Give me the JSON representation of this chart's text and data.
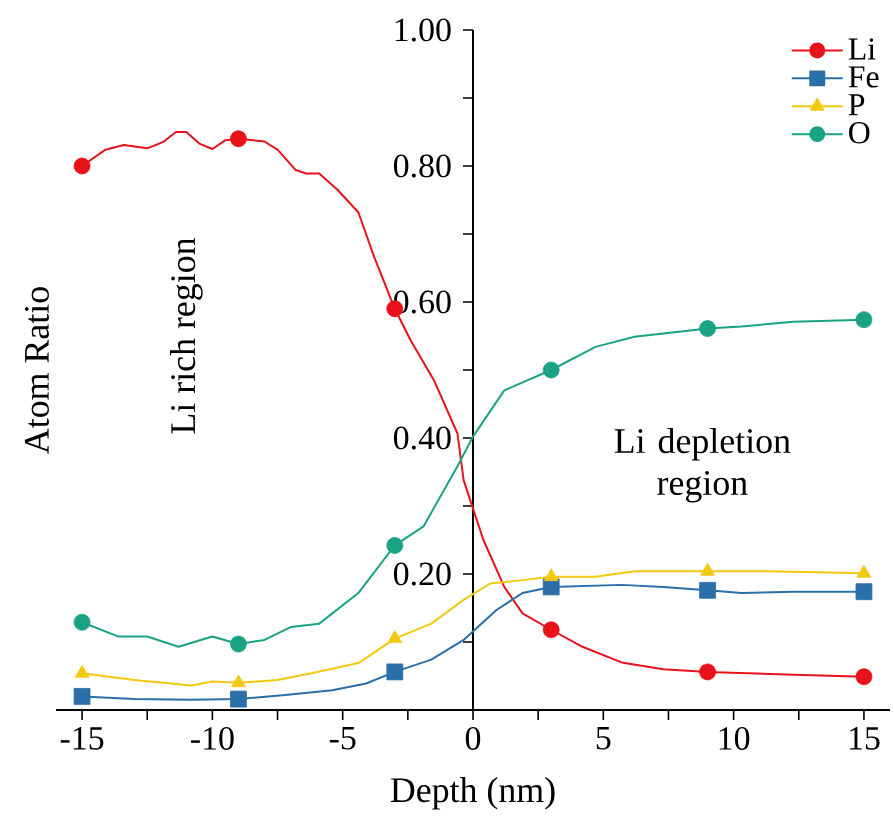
{
  "chart_data": {
    "type": "line",
    "xlabel": "Depth (nm)",
    "ylabel": "Atom Ratio",
    "annotations": [
      "Li rich region",
      "Li depletion region"
    ],
    "xlim": [
      -16,
      16
    ],
    "ylim": [
      0,
      1.0
    ],
    "xticks": [
      -15,
      {
        "value": -12.5,
        "label": null
      },
      -10,
      {
        "value": -7.5,
        "label": null
      },
      -5,
      {
        "value": -2.5,
        "label": null
      },
      0,
      {
        "value": 2.5,
        "label": null
      },
      5,
      {
        "value": 7.5,
        "label": null
      },
      10,
      {
        "value": 12.5,
        "label": null
      },
      15
    ],
    "yticks": [
      {
        "value": 0.1,
        "label": null
      },
      {
        "value": 0.2,
        "label": "0.20"
      },
      {
        "value": 0.3,
        "label": null
      },
      {
        "value": 0.4,
        "label": "0.40"
      },
      {
        "value": 0.5,
        "label": null
      },
      {
        "value": 0.6,
        "label": "0.60"
      },
      {
        "value": 0.7,
        "label": null
      },
      {
        "value": 0.8,
        "label": "0.80"
      },
      {
        "value": 0.9,
        "label": null
      },
      {
        "value": 1.0,
        "label": "1.00"
      }
    ],
    "legend": "top right",
    "series": [
      {
        "name": "Li",
        "color": "#e8121a",
        "x": [
          -15,
          -14.1,
          -13.4,
          -12.5,
          -11.9,
          -11.4,
          -11.0,
          -10.5,
          -10.0,
          -9.5,
          -9,
          -8.0,
          -7.5,
          -6.8,
          -6.4,
          -5.9,
          -5.2,
          -4.4,
          -3.8,
          -3,
          -2.4,
          -1.5,
          -0.6,
          -0.36,
          0.4,
          1.2,
          1.9,
          3,
          4.2,
          5.7,
          7.3,
          9,
          12.3,
          15
        ],
        "values": [
          0.8,
          0.824,
          0.831,
          0.826,
          0.835,
          0.85,
          0.85,
          0.833,
          0.825,
          0.838,
          0.84,
          0.836,
          0.824,
          0.794,
          0.789,
          0.789,
          0.765,
          0.732,
          0.667,
          0.59,
          0.544,
          0.485,
          0.407,
          0.338,
          0.25,
          0.181,
          0.142,
          0.118,
          0.093,
          0.07,
          0.06,
          0.056,
          0.052,
          0.049
        ]
      },
      {
        "name": "Fe",
        "color": "#2a6fa8",
        "x": [
          -15,
          -13,
          -10.8,
          -9,
          -7.2,
          -5.4,
          -4.1,
          -3,
          -1.6,
          -0.36,
          0.9,
          1.9,
          3,
          5.7,
          7.3,
          9,
          10.3,
          12.3,
          15
        ],
        "values": [
          0.02,
          0.016,
          0.015,
          0.016,
          0.022,
          0.029,
          0.039,
          0.056,
          0.074,
          0.103,
          0.147,
          0.172,
          0.181,
          0.184,
          0.181,
          0.176,
          0.172,
          0.174,
          0.174
        ]
      },
      {
        "name": "P",
        "color": "#f2c811",
        "x": [
          -15,
          -13,
          -10.8,
          -10,
          -9,
          -7.5,
          -6.2,
          -4.4,
          -3,
          -1.6,
          -0.36,
          0.66,
          1.9,
          3,
          4.7,
          6.2,
          9,
          11.3,
          15
        ],
        "values": [
          0.054,
          0.044,
          0.036,
          0.042,
          0.04,
          0.044,
          0.054,
          0.069,
          0.105,
          0.127,
          0.162,
          0.186,
          0.191,
          0.196,
          0.196,
          0.204,
          0.204,
          0.204,
          0.201
        ]
      },
      {
        "name": "O",
        "color": "#1aa383",
        "x": [
          -15,
          -13.6,
          -12.5,
          -11.3,
          -10,
          -9,
          -8.0,
          -7.0,
          -5.9,
          -4.4,
          -3,
          -1.9,
          -0.6,
          0,
          1.2,
          3,
          4.7,
          6.2,
          9,
          10.3,
          12.3,
          15
        ],
        "values": [
          0.129,
          0.108,
          0.108,
          0.093,
          0.108,
          0.097,
          0.103,
          0.122,
          0.127,
          0.172,
          0.242,
          0.27,
          0.358,
          0.402,
          0.47,
          0.5,
          0.534,
          0.549,
          0.561,
          0.564,
          0.571,
          0.574
        ]
      },
      {
        "type": "scatter",
        "color": "#e8121a",
        "marker": "circle",
        "x": [
          -15,
          -9,
          -3,
          3,
          9,
          15
        ],
        "values": [
          0.8,
          0.84,
          0.59,
          0.118,
          0.056,
          0.049
        ]
      },
      {
        "type": "scatter",
        "color": "#2a6fa8",
        "marker": "square",
        "x": [
          -15,
          -9,
          -3,
          3,
          9,
          15
        ],
        "values": [
          0.02,
          0.016,
          0.056,
          0.181,
          0.176,
          0.174
        ]
      },
      {
        "type": "scatter",
        "color": "#f2c811",
        "marker": "triangle",
        "x": [
          -15,
          -9,
          -3,
          3,
          9,
          15
        ],
        "values": [
          0.054,
          0.04,
          0.105,
          0.196,
          0.204,
          0.201
        ]
      },
      {
        "type": "scatter",
        "color": "#1aa383",
        "marker": "circle",
        "x": [
          -15,
          -9,
          -3,
          3,
          9,
          15
        ],
        "values": [
          0.129,
          0.097,
          0.242,
          0.5,
          0.561,
          0.574
        ]
      }
    ]
  }
}
